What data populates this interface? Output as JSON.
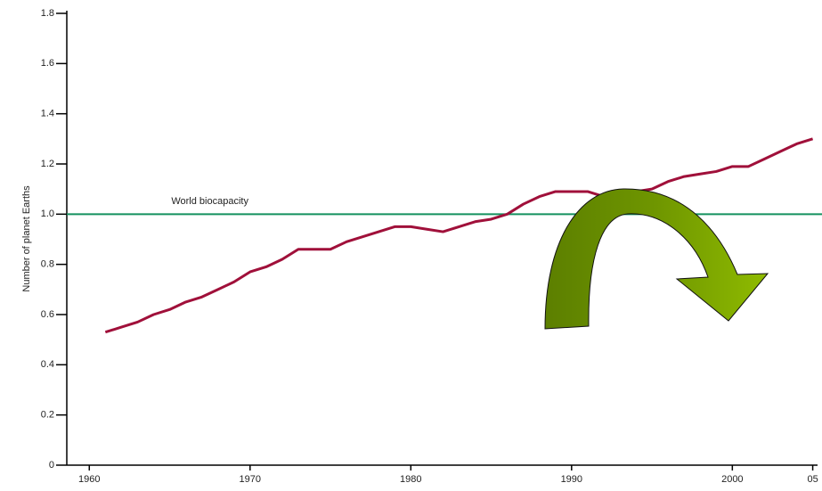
{
  "chart_data": {
    "type": "line",
    "y_label": "Number of planet Earths",
    "x": [
      1961,
      1962,
      1963,
      1964,
      1965,
      1966,
      1967,
      1968,
      1969,
      1970,
      1971,
      1972,
      1973,
      1974,
      1975,
      1976,
      1977,
      1978,
      1979,
      1980,
      1981,
      1982,
      1983,
      1984,
      1985,
      1986,
      1987,
      1988,
      1989,
      1990,
      1991,
      1992,
      1993,
      1994,
      1995,
      1996,
      1997,
      1998,
      1999,
      2000,
      2001,
      2002,
      2003,
      2004,
      2005
    ],
    "series": [
      {
        "color": "#a0103a",
        "values": [
          0.53,
          0.55,
          0.57,
          0.6,
          0.62,
          0.65,
          0.67,
          0.7,
          0.73,
          0.77,
          0.79,
          0.82,
          0.86,
          0.86,
          0.86,
          0.89,
          0.91,
          0.93,
          0.95,
          0.95,
          0.94,
          0.93,
          0.95,
          0.97,
          0.98,
          1.0,
          1.04,
          1.07,
          1.09,
          1.09,
          1.09,
          1.07,
          1.07,
          1.09,
          1.1,
          1.13,
          1.15,
          1.16,
          1.17,
          1.19,
          1.19,
          1.22,
          1.25,
          1.28,
          1.3
        ]
      }
    ],
    "reference_lines": [
      {
        "value": 1,
        "label": "World biocapacity",
        "color": "#14905e"
      }
    ],
    "xlim": [
      1958.6,
      2005.3
    ],
    "xticks": [
      1960,
      1970,
      1980,
      1990,
      2000,
      {
        "value": 2005,
        "label": "05"
      }
    ],
    "ylim": [
      0,
      1.8
    ],
    "yticks": [
      0,
      0.2,
      0.4,
      0.6,
      0.8,
      {
        "value": 1,
        "label": "1.0"
      },
      1.2,
      1.4,
      1.6,
      1.8
    ]
  }
}
